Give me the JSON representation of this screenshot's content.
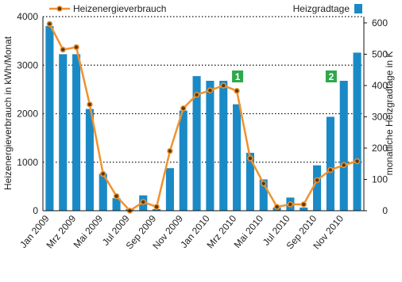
{
  "chart_data": {
    "type": "bar-line",
    "categories": [
      "Jan 2009",
      null,
      "Mrz 2009",
      null,
      "Mai 2009",
      null,
      "Jul 2009",
      null,
      "Sep 2009",
      null,
      "Nov 2009",
      null,
      "Jan 2010",
      null,
      "Mrz 2010",
      null,
      "Mai 2010",
      null,
      "Jul 2010",
      null,
      "Sep 2010",
      null,
      "Nov 2010",
      null
    ],
    "series": [
      {
        "name": "Heizgradtage",
        "type": "bar",
        "axis": "y2",
        "color": "#1a8ac6",
        "values": [
          590,
          500,
          500,
          325,
          118,
          40,
          5,
          49,
          5,
          136,
          320,
          430,
          415,
          415,
          340,
          185,
          100,
          10,
          42,
          10,
          145,
          300,
          415,
          505
        ]
      },
      {
        "name": "Heizenergieverbrauch",
        "type": "line",
        "axis": "y",
        "color": "#f0922e",
        "values": [
          3850,
          3320,
          3370,
          2190,
          760,
          300,
          0,
          180,
          80,
          1230,
          2110,
          2390,
          2480,
          2580,
          2470,
          1080,
          560,
          80,
          130,
          130,
          630,
          840,
          940,
          1020
        ]
      }
    ],
    "ylabel": "Heizenergieverbrauch in kWh/Monat",
    "y2label": "monatliche Heizgradtage in K",
    "ylim": [
      0,
      4000
    ],
    "yticks": [
      0,
      1000,
      2000,
      3000,
      4000
    ],
    "y2lim": [
      0,
      620
    ],
    "y2ticks": [
      0,
      100,
      200,
      300,
      400,
      500,
      600
    ],
    "grid": true,
    "annotations": [
      {
        "text": "1",
        "index": 14,
        "color": "#2ea84a"
      },
      {
        "text": "2",
        "index": 21,
        "color": "#2ea84a"
      }
    ]
  }
}
